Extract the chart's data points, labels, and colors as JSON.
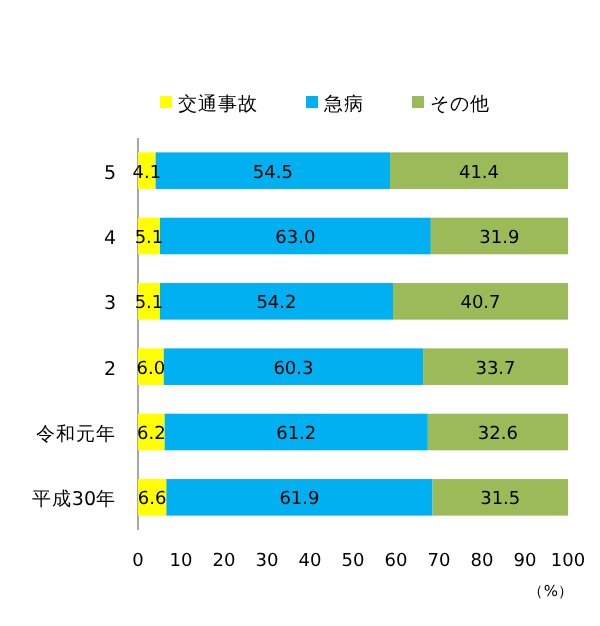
{
  "chart_data": {
    "type": "bar",
    "orientation": "horizontal",
    "stacked": true,
    "categories": [
      "5",
      "4",
      "3",
      "2",
      "令和元年",
      "平成30年"
    ],
    "series": [
      {
        "name": "交通事故",
        "color": "#ffff00",
        "values": [
          4.1,
          5.1,
          5.1,
          6.0,
          6.2,
          6.6
        ],
        "value_labels": [
          "4.1",
          "5.1",
          "5.1",
          "6.0",
          "6.2",
          "6.6"
        ]
      },
      {
        "name": "急病",
        "color": "#00b0f0",
        "values": [
          54.5,
          63.0,
          54.2,
          60.3,
          61.2,
          61.9
        ],
        "value_labels": [
          "54.5",
          "63.0",
          "54.2",
          "60.3",
          "61.2",
          "61.9"
        ]
      },
      {
        "name": "その他",
        "color": "#9bbb59",
        "values": [
          41.4,
          31.9,
          40.7,
          33.7,
          32.6,
          31.5
        ],
        "value_labels": [
          "41.4",
          "31.9",
          "40.7",
          "33.7",
          "32.6",
          "31.5"
        ]
      }
    ],
    "xlabel": "（%）",
    "xlim": [
      0,
      100
    ],
    "xticks": [
      0,
      10,
      20,
      30,
      40,
      50,
      60,
      70,
      80,
      90,
      100
    ],
    "legend": "top",
    "grid": false
  }
}
